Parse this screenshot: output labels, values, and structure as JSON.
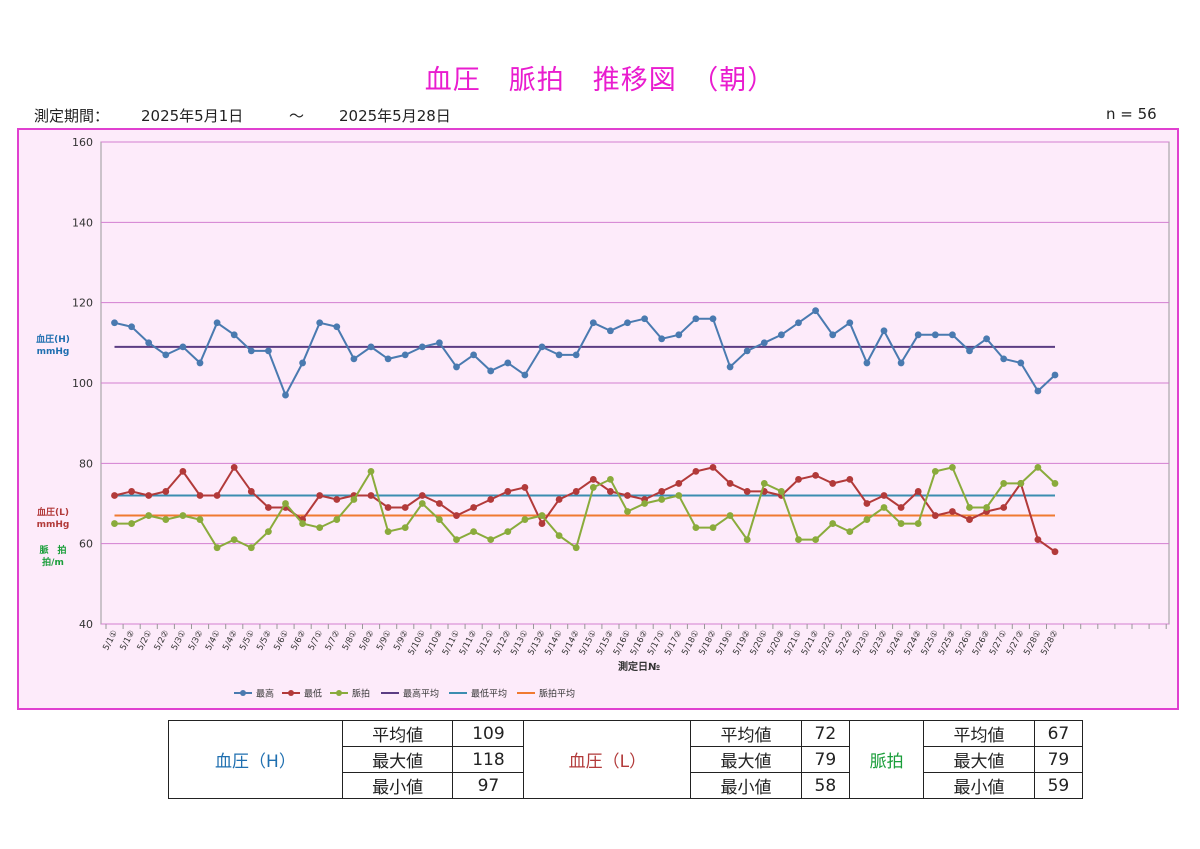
{
  "header": {
    "title": "血圧　脈拍　推移図　（朝）",
    "period_label": "測定期間：",
    "start_date": "2025年5月1日",
    "tilde": "～",
    "end_date": "2025年5月28日",
    "n_label": "n = 56"
  },
  "chart_data": {
    "type": "line",
    "ylim": [
      40,
      160
    ],
    "yticks": [
      40,
      60,
      80,
      100,
      120,
      140,
      160
    ],
    "grid": true,
    "legend_position": "bottom",
    "xlabel": "測定日№",
    "ylabel_bp_high": [
      "血圧(H)",
      "mmHg"
    ],
    "ylabel_bp_low": [
      "血圧(L)",
      "mmHg"
    ],
    "ylabel_pulse": [
      "脈　拍",
      "拍/m"
    ],
    "categories": [
      "5/1①",
      "5/1②",
      "5/2①",
      "5/2②",
      "5/3①",
      "5/3②",
      "5/4①",
      "5/4②",
      "5/5①",
      "5/5②",
      "5/6①",
      "5/6②",
      "5/7①",
      "5/7②",
      "5/8①",
      "5/8②",
      "5/9①",
      "5/9②",
      "5/10①",
      "5/10②",
      "5/11①",
      "5/11②",
      "5/12①",
      "5/12②",
      "5/13①",
      "5/13②",
      "5/14①",
      "5/14②",
      "5/15①",
      "5/15②",
      "5/16①",
      "5/16②",
      "5/17①",
      "5/17②",
      "5/18①",
      "5/18②",
      "5/19①",
      "5/19②",
      "5/20①",
      "5/20②",
      "5/21①",
      "5/21②",
      "5/22①",
      "5/22②",
      "5/23①",
      "5/23②",
      "5/24①",
      "5/24②",
      "5/25①",
      "5/25②",
      "5/26①",
      "5/26②",
      "5/27①",
      "5/27②",
      "5/28①",
      "5/28②"
    ],
    "series": [
      {
        "name": "最高",
        "color": "#4a7ab0",
        "marker": true,
        "values": [
          115,
          114,
          110,
          107,
          109,
          105,
          115,
          112,
          108,
          108,
          97,
          105,
          115,
          114,
          106,
          109,
          106,
          107,
          109,
          110,
          104,
          107,
          103,
          105,
          102,
          109,
          107,
          107,
          115,
          113,
          115,
          116,
          111,
          112,
          116,
          116,
          104,
          108,
          110,
          112,
          115,
          118,
          112,
          115,
          105,
          113,
          105,
          112,
          112,
          112,
          108,
          111,
          106,
          105,
          98,
          102
        ]
      },
      {
        "name": "最低",
        "color": "#b23a3a",
        "marker": true,
        "values": [
          72,
          73,
          72,
          73,
          78,
          72,
          72,
          79,
          73,
          69,
          69,
          66,
          72,
          71,
          72,
          72,
          69,
          69,
          72,
          70,
          67,
          69,
          71,
          73,
          74,
          65,
          71,
          73,
          76,
          73,
          72,
          71,
          73,
          75,
          78,
          79,
          75,
          73,
          73,
          72,
          76,
          77,
          75,
          76,
          70,
          72,
          69,
          73,
          67,
          68,
          66,
          68,
          69,
          75,
          61,
          58
        ]
      },
      {
        "name": "脈拍",
        "color": "#8aab3c",
        "marker": true,
        "values": [
          65,
          65,
          67,
          66,
          67,
          66,
          59,
          61,
          59,
          63,
          70,
          65,
          64,
          66,
          71,
          78,
          63,
          64,
          70,
          66,
          61,
          63,
          61,
          63,
          66,
          67,
          62,
          59,
          74,
          76,
          68,
          70,
          71,
          72,
          64,
          64,
          67,
          61,
          75,
          73,
          61,
          61,
          65,
          63,
          66,
          69,
          65,
          65,
          78,
          79,
          69,
          69,
          75,
          75,
          79,
          75
        ]
      },
      {
        "name": "最高平均",
        "color": "#5b3d83",
        "marker": false,
        "constant": 109
      },
      {
        "name": "最低平均",
        "color": "#3c8db0",
        "marker": false,
        "constant": 72
      },
      {
        "name": "脈拍平均",
        "color": "#f07a30",
        "marker": false,
        "constant": 67
      }
    ]
  },
  "summary": {
    "groups": [
      {
        "label": "血圧（H）",
        "rows": [
          [
            "平均値",
            "109"
          ],
          [
            "最大値",
            "118"
          ],
          [
            "最小値",
            "97"
          ]
        ],
        "color": "#1f6fb0"
      },
      {
        "label": "血圧（L）",
        "rows": [
          [
            "平均値",
            "72"
          ],
          [
            "最大値",
            "79"
          ],
          [
            "最小値",
            "58"
          ]
        ],
        "color": "#b23a3a"
      },
      {
        "label": "脈拍",
        "rows": [
          [
            "平均値",
            "67"
          ],
          [
            "最大値",
            "79"
          ],
          [
            "最小値",
            "59"
          ]
        ],
        "color": "#1a9e3a"
      }
    ]
  }
}
